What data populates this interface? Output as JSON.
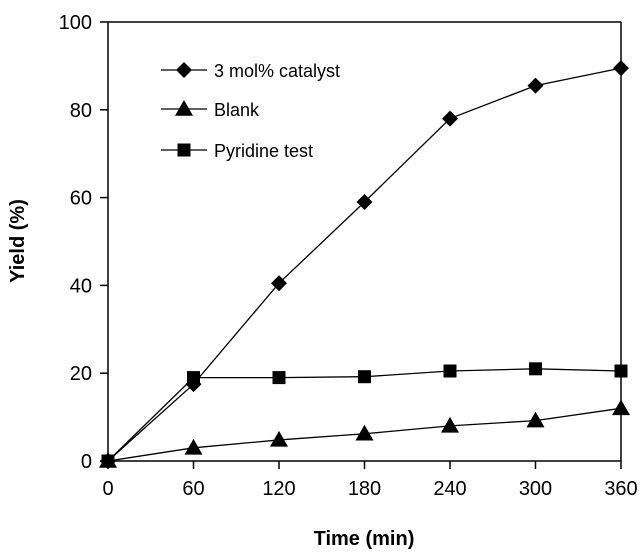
{
  "chart_data": {
    "type": "line",
    "title": "",
    "xlabel": "Time (min)",
    "ylabel": "Yield (%)",
    "xlim": [
      0,
      360
    ],
    "ylim": [
      0,
      100
    ],
    "xticks": [
      0,
      60,
      120,
      180,
      240,
      300,
      360
    ],
    "yticks": [
      0,
      20,
      40,
      60,
      80,
      100
    ],
    "grid": false,
    "legend_position": "top-left",
    "x": [
      0,
      60,
      120,
      180,
      240,
      300,
      360
    ],
    "series": [
      {
        "name": "3 mol% catalyst",
        "marker": "diamond",
        "color": "#000000",
        "values": [
          0,
          17.5,
          40.5,
          59,
          78,
          85.5,
          89.5
        ]
      },
      {
        "name": "Blank",
        "marker": "triangle",
        "color": "#000000",
        "values": [
          0,
          3,
          4.8,
          6.2,
          8,
          9.2,
          12
        ]
      },
      {
        "name": "Pyridine test",
        "marker": "square",
        "color": "#000000",
        "values": [
          0,
          19,
          19,
          19.2,
          20.5,
          21,
          20.5
        ]
      }
    ]
  }
}
